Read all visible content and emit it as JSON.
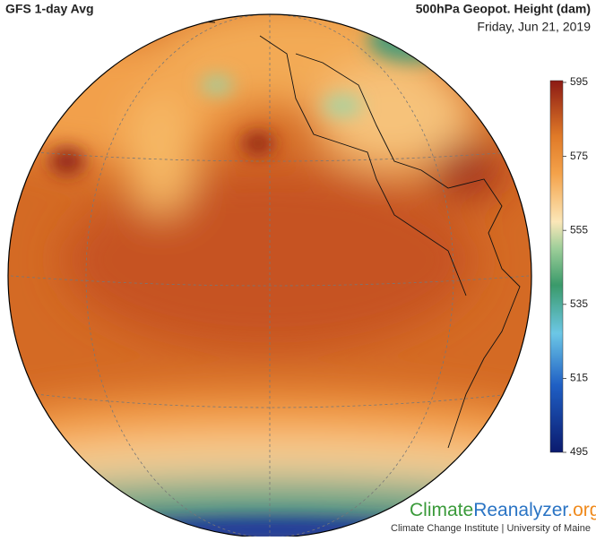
{
  "header": {
    "title": "GFS 1-day Avg",
    "variable": "500hPa Geopot. Height (dam)",
    "date": "Friday, Jun 21, 2019"
  },
  "colorbar": {
    "range": [
      495,
      595
    ],
    "ticks": [
      495,
      515,
      535,
      555,
      575,
      595
    ]
  },
  "footer": {
    "logo": [
      "Climate",
      "Reanalyzer",
      ".org"
    ],
    "credit": "Climate Change Institute | University of Maine"
  }
}
